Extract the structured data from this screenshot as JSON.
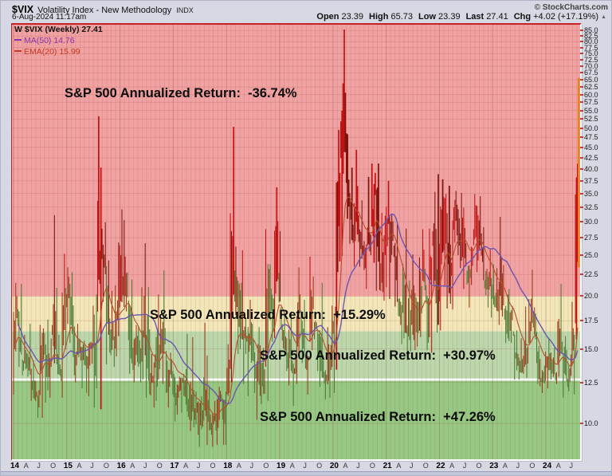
{
  "header": {
    "symbol": "$VIX",
    "title": "Volatility Index - New Methodology",
    "exchange": "INDX",
    "source": "© StockCharts.com",
    "datetime": "6-Aug-2024 11:17am",
    "quote": {
      "fields": [
        {
          "label": "Open",
          "value": "23.39"
        },
        {
          "label": "High",
          "value": "65.73"
        },
        {
          "label": "Low",
          "value": "23.39"
        },
        {
          "label": "Last",
          "value": "27.41"
        },
        {
          "label": "Chg",
          "value": "+4.02 (+17.19%)"
        }
      ],
      "direction": "up"
    }
  },
  "legend": {
    "main": "W $VIX (Weekly) 27.41",
    "ma": "MA(50) 14.76",
    "ema": "EMA(20) 15.99"
  },
  "chart_data": {
    "type": "candlestick",
    "symbol": "$VIX",
    "timeframe": "weekly",
    "y_scale": "log",
    "y_range": [
      8.2,
      87.8
    ],
    "y_ticks": [
      85.0,
      82.5,
      80.0,
      77.5,
      75.0,
      72.5,
      70.0,
      67.5,
      65.0,
      62.5,
      60.0,
      57.5,
      55.0,
      52.5,
      50.0,
      47.5,
      45.0,
      42.5,
      40.0,
      37.5,
      35.0,
      32.5,
      30.0,
      27.5,
      25.0,
      22.5,
      20.0,
      17.5,
      15.0,
      12.5,
      10.0
    ],
    "x_start": "2014-01",
    "x_end": "2024-08",
    "year_labels": [
      "14",
      "15",
      "16",
      "17",
      "18",
      "19",
      "20",
      "21",
      "22",
      "23",
      "24"
    ],
    "month_letters": [
      "A",
      "J",
      "O"
    ],
    "zones": [
      {
        "label": "S&P 500 Annualized Return:  -36.74%",
        "return_pct": -36.74,
        "vix_from": 20.0,
        "vix_to": 87.8,
        "color": "#f1a2a2"
      },
      {
        "label": "S&P 500 Annualized Return:  +15.29%",
        "return_pct": 15.29,
        "vix_from": 16.5,
        "vix_to": 20.0,
        "color": "#f3e7b9"
      },
      {
        "label": "S&P 500 Annualized Return:  +30.97%",
        "return_pct": 30.97,
        "vix_from": 12.7,
        "vix_to": 16.5,
        "color": "#bcd7ab"
      },
      {
        "label": "S&P 500 Annualized Return:  +47.26%",
        "return_pct": 47.26,
        "vix_from": 8.2,
        "vix_to": 12.7,
        "color": "#97c884"
      }
    ],
    "zone_divider": {
      "value": 12.7,
      "color": "#ffffff"
    },
    "overlays": [
      {
        "name": "MA(50)",
        "period": 50,
        "last": 14.76,
        "color": "#6a55b0"
      },
      {
        "name": "EMA(20)",
        "period": 20,
        "last": 15.99,
        "color": "#b5502a"
      }
    ],
    "last_bar": {
      "open": 23.39,
      "high": 65.73,
      "low": 23.39,
      "close": 27.41,
      "color": "#e8801e"
    },
    "monthly_hlc": [
      [
        21.5,
        11.7,
        18.4
      ],
      [
        21.4,
        13.6,
        14.0
      ],
      [
        16.2,
        13.0,
        13.9
      ],
      [
        17.2,
        12.9,
        13.4
      ],
      [
        14.1,
        11.3,
        11.4
      ],
      [
        12.6,
        10.3,
        11.6
      ],
      [
        17.1,
        10.3,
        17.0
      ],
      [
        17.6,
        11.2,
        12.0
      ],
      [
        17.1,
        11.5,
        16.3
      ],
      [
        31.1,
        13.8,
        14.0
      ],
      [
        16.2,
        12.6,
        13.3
      ],
      [
        25.2,
        11.5,
        19.2
      ],
      [
        23.4,
        15.5,
        20.9
      ],
      [
        22.8,
        13.0,
        13.3
      ],
      [
        17.2,
        12.5,
        15.3
      ],
      [
        15.8,
        12.1,
        14.6
      ],
      [
        15.7,
        11.8,
        13.8
      ],
      [
        15.6,
        11.6,
        18.2
      ],
      [
        20.2,
        10.9,
        12.1
      ],
      [
        53.3,
        10.8,
        28.4
      ],
      [
        29.9,
        19.4,
        24.5
      ],
      [
        24.3,
        13.8,
        15.1
      ],
      [
        20.6,
        13.6,
        16.1
      ],
      [
        26.8,
        14.4,
        18.2
      ],
      [
        32.1,
        18.8,
        20.2
      ],
      [
        30.3,
        18.4,
        20.6
      ],
      [
        21.9,
        13.1,
        13.9
      ],
      [
        17.1,
        12.5,
        15.7
      ],
      [
        17.0,
        12.5,
        14.2
      ],
      [
        26.7,
        12.7,
        15.6
      ],
      [
        21.0,
        11.5,
        11.9
      ],
      [
        14.6,
        10.9,
        13.4
      ],
      [
        20.2,
        11.3,
        13.3
      ],
      [
        17.9,
        12.4,
        17.1
      ],
      [
        23.0,
        11.8,
        12.2
      ],
      [
        14.7,
        10.9,
        14.0
      ],
      [
        13.3,
        10.1,
        11.8
      ],
      [
        12.9,
        10.5,
        12.9
      ],
      [
        13.1,
        10.6,
        12.4
      ],
      [
        16.3,
        10.2,
        10.8
      ],
      [
        16.0,
        9.6,
        10.4
      ],
      [
        11.9,
        9.4,
        11.2
      ],
      [
        11.6,
        8.8,
        10.3
      ],
      [
        17.3,
        8.9,
        10.6
      ],
      [
        12.2,
        9.4,
        9.5
      ],
      [
        11.3,
        8.8,
        10.2
      ],
      [
        12.2,
        8.9,
        11.3
      ],
      [
        11.7,
        8.9,
        11.0
      ],
      [
        15.4,
        8.9,
        13.5
      ],
      [
        50.3,
        12.5,
        19.9
      ],
      [
        26.2,
        14.6,
        20.0
      ],
      [
        25.7,
        15.0,
        15.9
      ],
      [
        17.8,
        12.4,
        15.4
      ],
      [
        19.6,
        11.6,
        16.1
      ],
      [
        17.2,
        11.8,
        12.8
      ],
      [
        16.9,
        10.2,
        12.9
      ],
      [
        15.1,
        11.1,
        12.1
      ],
      [
        28.8,
        11.3,
        21.2
      ],
      [
        23.8,
        15.6,
        18.1
      ],
      [
        36.2,
        15.9,
        25.4
      ],
      [
        28.5,
        15.7,
        16.6
      ],
      [
        18.0,
        13.3,
        14.8
      ],
      [
        18.4,
        12.3,
        13.7
      ],
      [
        14.5,
        11.0,
        13.1
      ],
      [
        23.4,
        12.4,
        18.7
      ],
      [
        19.6,
        13.9,
        15.1
      ],
      [
        14.5,
        11.7,
        16.1
      ],
      [
        24.8,
        14.9,
        19.0
      ],
      [
        17.5,
        13.3,
        16.2
      ],
      [
        21.5,
        12.2,
        13.2
      ],
      [
        14.1,
        11.4,
        12.6
      ],
      [
        16.9,
        11.5,
        13.8
      ],
      [
        19.0,
        11.8,
        18.8
      ],
      [
        49.5,
        13.4,
        40.1
      ],
      [
        85.5,
        24.9,
        53.5
      ],
      [
        60.6,
        30.5,
        34.2
      ],
      [
        40.3,
        26.6,
        27.5
      ],
      [
        44.4,
        23.5,
        30.4
      ],
      [
        33.7,
        23.5,
        24.5
      ],
      [
        27.0,
        20.8,
        26.4
      ],
      [
        38.3,
        25.0,
        26.4
      ],
      [
        41.2,
        24.0,
        38.0
      ],
      [
        41.2,
        20.6,
        20.6
      ],
      [
        31.5,
        19.5,
        22.8
      ],
      [
        37.5,
        21.0,
        33.1
      ],
      [
        31.2,
        19.7,
        28.0
      ],
      [
        29.6,
        18.9,
        19.4
      ],
      [
        19.8,
        15.4,
        18.6
      ],
      [
        28.9,
        15.9,
        16.8
      ],
      [
        21.8,
        14.1,
        15.8
      ],
      [
        25.1,
        14.9,
        18.2
      ],
      [
        24.7,
        15.2,
        16.5
      ],
      [
        28.8,
        16.0,
        23.1
      ],
      [
        23.2,
        14.9,
        16.3
      ],
      [
        28.9,
        14.7,
        27.2
      ],
      [
        35.3,
        16.4,
        17.2
      ],
      [
        38.9,
        16.6,
        27.7
      ],
      [
        37.8,
        21.2,
        30.2
      ],
      [
        36.5,
        18.7,
        20.6
      ],
      [
        33.8,
        18.6,
        33.4
      ],
      [
        35.5,
        25.0,
        26.2
      ],
      [
        35.1,
        20.8,
        28.7
      ],
      [
        29.0,
        21.3,
        21.3
      ],
      [
        26.2,
        18.8,
        25.9
      ],
      [
        34.9,
        22.8,
        31.6
      ],
      [
        34.5,
        24.3,
        25.9
      ],
      [
        29.1,
        20.1,
        20.6
      ],
      [
        25.8,
        18.8,
        21.7
      ],
      [
        23.8,
        17.8,
        19.4
      ],
      [
        23.3,
        17.1,
        20.7
      ],
      [
        30.8,
        17.9,
        18.7
      ],
      [
        20.2,
        15.5,
        15.8
      ],
      [
        20.8,
        15.5,
        17.9
      ],
      [
        16.6,
        12.7,
        13.6
      ],
      [
        15.9,
        12.7,
        13.3
      ],
      [
        18.9,
        13.1,
        13.6
      ],
      [
        19.7,
        12.8,
        17.5
      ],
      [
        23.1,
        16.2,
        18.1
      ],
      [
        18.2,
        12.4,
        12.9
      ],
      [
        14.2,
        11.8,
        12.5
      ],
      [
        14.8,
        12.1,
        14.3
      ],
      [
        15.9,
        12.7,
        13.4
      ],
      [
        15.1,
        12.4,
        13.0
      ],
      [
        21.4,
        12.9,
        15.7
      ],
      [
        16.1,
        11.5,
        12.9
      ],
      [
        14.9,
        11.9,
        12.4
      ],
      [
        19.4,
        11.7,
        16.4
      ],
      [
        65.7,
        15.8,
        27.4
      ]
    ]
  }
}
